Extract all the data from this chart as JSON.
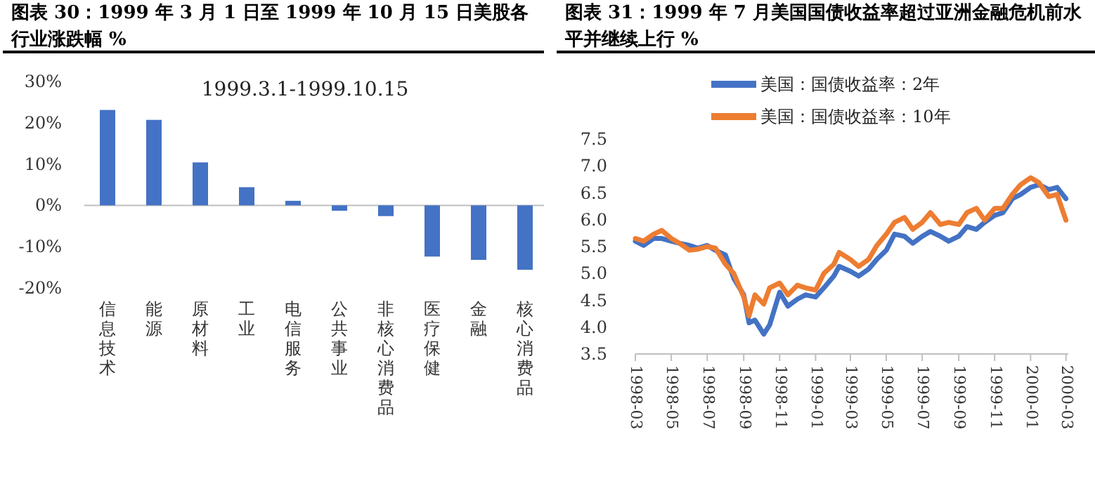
{
  "chart_data": [
    {
      "type": "bar",
      "title": "图表 30：1999 年 3 月 1 日至 1999 年 10 月 15 日美股各行业涨跌幅  %",
      "categories": [
        "信息技术",
        "能源",
        "原材料",
        "工业",
        "电信服务",
        "公共事业",
        "非核心消费品",
        "医疗保健",
        "金融",
        "核心消费品"
      ],
      "values": [
        23.1,
        20.7,
        10.4,
        4.4,
        1.1,
        -1.3,
        -2.6,
        -12.4,
        -13.2,
        -15.6
      ],
      "color": "#4472c4",
      "ylim": [
        -20,
        30
      ],
      "yticks": [
        {
          "value": 30,
          "label": "30%"
        },
        {
          "value": 20,
          "label": "20%"
        },
        {
          "value": 10,
          "label": "10%"
        },
        {
          "value": 0,
          "label": "0%"
        },
        {
          "value": -10,
          "label": "-10%"
        },
        {
          "value": -20,
          "label": "-20%"
        }
      ],
      "annotations": [
        "1999.3.1-1999.10.15"
      ]
    },
    {
      "type": "line",
      "title": "图表 31：1999 年 7 月美国国债收益率超过亚洲金融危机前水平并继续上行  %",
      "legend": "top",
      "ylim": [
        3.5,
        7.5
      ],
      "yticks": [
        3.5,
        {
          "value": 4,
          "label": "4.0"
        },
        4.5,
        {
          "value": 5,
          "label": "5.0"
        },
        5.5,
        {
          "value": 6,
          "label": "6.0"
        },
        6.5,
        {
          "value": 7,
          "label": "7.0"
        },
        7.5
      ],
      "xlim": [
        "1998-03-01",
        "2000-03-05"
      ],
      "xticks": [
        "1998-03",
        "1998-05",
        "1998-07",
        "1998-09",
        "1998-11",
        "1999-01",
        "1999-03",
        "1999-05",
        "1999-07",
        "1999-09",
        "1999-11",
        "2000-01",
        "2000-03"
      ],
      "x": [
        "1998-03-01",
        "1998-03-15",
        "1998-04-01",
        "1998-04-15",
        "1998-05-01",
        "1998-05-15",
        "1998-06-01",
        "1998-06-15",
        "1998-07-01",
        "1998-07-15",
        "1998-08-01",
        "1998-08-15",
        "1998-09-01",
        "1998-09-10",
        "1998-09-20",
        "1998-10-05",
        "1998-10-15",
        "1998-11-01",
        "1998-11-15",
        "1998-12-01",
        "1998-12-15",
        "1999-01-01",
        "1999-01-15",
        "1999-02-01",
        "1999-02-10",
        "1999-03-01",
        "1999-03-15",
        "1999-04-01",
        "1999-04-15",
        "1999-05-01",
        "1999-05-15",
        "1999-06-01",
        "1999-06-15",
        "1999-07-01",
        "1999-07-15",
        "1999-08-01",
        "1999-08-15",
        "1999-09-01",
        "1999-09-15",
        "1999-10-01",
        "1999-10-15",
        "1999-11-01",
        "1999-11-15",
        "1999-12-01",
        "1999-12-15",
        "2000-01-01",
        "2000-01-15",
        "2000-02-01",
        "2000-02-15",
        "2000-03-01"
      ],
      "series": [
        {
          "name": "美国：国债收益率：2年",
          "color": "#4472c4",
          "values": [
            5.6,
            5.52,
            5.65,
            5.65,
            5.6,
            5.56,
            5.52,
            5.47,
            5.52,
            5.43,
            5.34,
            4.91,
            4.6,
            4.08,
            4.13,
            3.87,
            4.04,
            4.65,
            4.39,
            4.52,
            4.6,
            4.56,
            4.73,
            4.95,
            5.13,
            5.04,
            4.95,
            5.08,
            5.26,
            5.43,
            5.73,
            5.69,
            5.56,
            5.69,
            5.78,
            5.69,
            5.6,
            5.69,
            5.87,
            5.82,
            5.95,
            6.08,
            6.13,
            6.39,
            6.47,
            6.6,
            6.65,
            6.56,
            6.6,
            6.39
          ]
        },
        {
          "name": "美国：国债收益率：10年",
          "color": "#ed7d31",
          "values": [
            5.65,
            5.6,
            5.73,
            5.8,
            5.65,
            5.56,
            5.43,
            5.45,
            5.5,
            5.47,
            5.17,
            5.0,
            4.56,
            4.21,
            4.6,
            4.43,
            4.73,
            4.82,
            4.6,
            4.78,
            4.73,
            4.69,
            5.0,
            5.17,
            5.39,
            5.26,
            5.13,
            5.26,
            5.52,
            5.73,
            5.95,
            6.04,
            5.82,
            5.95,
            6.13,
            5.91,
            5.95,
            5.91,
            6.13,
            6.21,
            5.99,
            6.21,
            6.21,
            6.47,
            6.65,
            6.78,
            6.69,
            6.43,
            6.47,
            5.99
          ]
        }
      ]
    }
  ]
}
